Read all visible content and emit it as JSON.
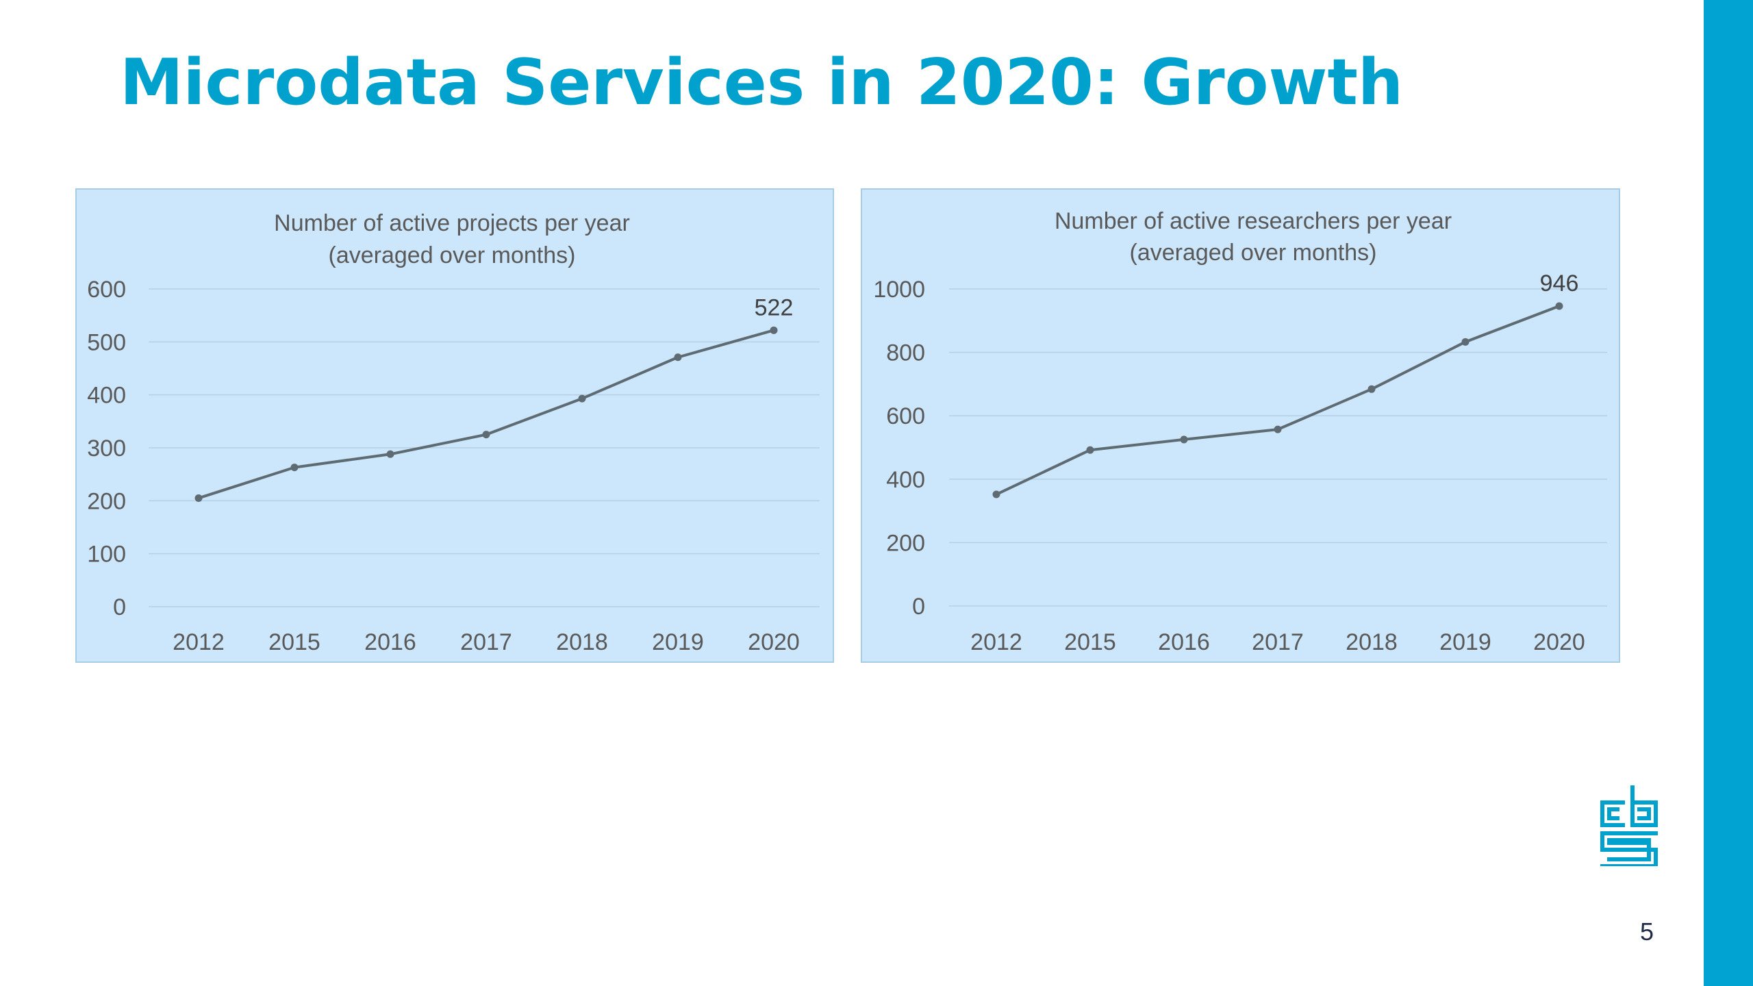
{
  "slide": {
    "title": "Microdata Services in 2020: Growth",
    "page_number": "5",
    "logo": "cbs"
  },
  "colors": {
    "title": "#00a1cd",
    "accent_bar": "#00a3d2",
    "chart_background": "#cce6fb",
    "line": "#5f6b73"
  },
  "chart_data": [
    {
      "type": "line",
      "title": "Number of active projects per year",
      "subtitle": "(averaged over months)",
      "categories": [
        "2012",
        "2015",
        "2016",
        "2017",
        "2018",
        "2019",
        "2020"
      ],
      "series": [
        {
          "values": [
            205,
            263,
            288,
            325,
            393,
            471,
            522
          ]
        }
      ],
      "ylim": [
        0,
        600
      ],
      "yticks": [
        0,
        100,
        200,
        300,
        400,
        500,
        600
      ],
      "data_labels": [
        {
          "index": 6,
          "text": "522"
        }
      ],
      "grid": true,
      "legend": "none"
    },
    {
      "type": "line",
      "title": "Number of active researchers per year",
      "subtitle": "(averaged over months)",
      "categories": [
        "2012",
        "2015",
        "2016",
        "2017",
        "2018",
        "2019",
        "2020"
      ],
      "series": [
        {
          "values": [
            352,
            492,
            525,
            557,
            684,
            833,
            946
          ]
        }
      ],
      "ylim": [
        0,
        1000
      ],
      "yticks": [
        0,
        200,
        400,
        600,
        800,
        1000
      ],
      "data_labels": [
        {
          "index": 6,
          "text": "946"
        }
      ],
      "grid": true,
      "legend": "none"
    }
  ]
}
